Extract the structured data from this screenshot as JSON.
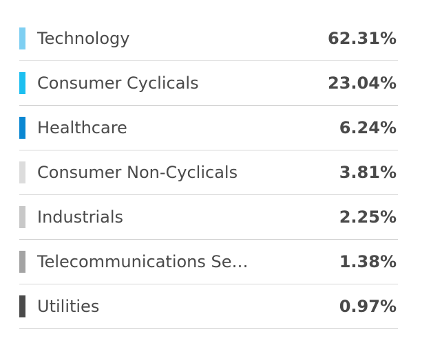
{
  "sectors": [
    {
      "label": "Technology",
      "value": "62.31%",
      "color": "#7ecff2"
    },
    {
      "label": "Consumer Cyclicals",
      "value": "23.04%",
      "color": "#1cbff0"
    },
    {
      "label": "Healthcare",
      "value": "6.24%",
      "color": "#0a87d2"
    },
    {
      "label": "Consumer Non-Cyclicals",
      "value": "3.81%",
      "color": "#dcdcdc"
    },
    {
      "label": "Industrials",
      "value": "2.25%",
      "color": "#c8c8c8"
    },
    {
      "label": "Telecommunications Se…",
      "value": "1.38%",
      "color": "#a3a3a3"
    },
    {
      "label": "Utilities",
      "value": "0.97%",
      "color": "#4a4a4a"
    }
  ]
}
